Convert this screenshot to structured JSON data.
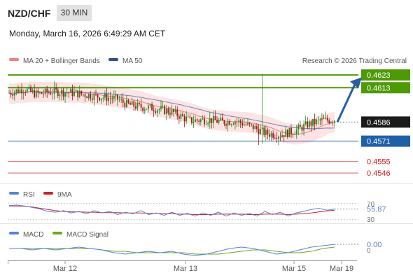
{
  "header": {
    "symbol": "NZD/CHF",
    "timeframe": "30 MIN",
    "datetime": "Monday, March 16, 2026 6:49:29 AM CET"
  },
  "legend": {
    "ma20": "MA 20 + Bollinger Bands",
    "ma50": "MA 50",
    "credit": "Research © 2026 Trading Central",
    "rsi": "RSI",
    "rsi_ma": "9MA",
    "macd": "MACD",
    "macd_signal": "MACD Signal"
  },
  "colors": {
    "up": "#1f8f1f",
    "down": "#a01818",
    "resistance": "#4e9a06",
    "support": "#1f5fa8",
    "target": "#cc2222",
    "ma20": "#f08080",
    "ma50": "#4a6ea8",
    "band": "#fde0e0",
    "arrow": "#2b5ca8",
    "rsi": "#5b7fd6",
    "rsi_ma": "#cc2222",
    "macd": "#5b7fd6",
    "macd_signal": "#6aa820"
  },
  "chart_data": [
    {
      "type": "candlestick",
      "x_ticks": [
        "Mar 12",
        "Mar 13",
        "Mar 15",
        "Mar 19"
      ],
      "ylim": [
        0.454,
        0.4628
      ],
      "last_price": "0.4586",
      "levels": [
        {
          "value": 0.4623,
          "label": "0.4623",
          "kind": "resistance"
        },
        {
          "value": 0.4613,
          "label": "0.4613",
          "kind": "resistance"
        },
        {
          "value": 0.4571,
          "label": "0.4571",
          "kind": "support"
        },
        {
          "value": 0.4555,
          "label": "0.4555",
          "kind": "target"
        },
        {
          "value": 0.4546,
          "label": "0.4546",
          "kind": "target"
        }
      ],
      "forecast": {
        "from": 0.4586,
        "to": 0.4619
      },
      "path": [
        [
          0,
          0.4609
        ],
        [
          8,
          0.4612
        ],
        [
          15,
          0.4608
        ],
        [
          25,
          0.461
        ],
        [
          35,
          0.4609
        ],
        [
          45,
          0.4607
        ],
        [
          55,
          0.4605
        ],
        [
          60,
          0.4604
        ],
        [
          65,
          0.46
        ],
        [
          72,
          0.4598
        ],
        [
          80,
          0.4597
        ],
        [
          90,
          0.4594
        ],
        [
          100,
          0.4587
        ],
        [
          110,
          0.4588
        ],
        [
          118,
          0.4586
        ],
        [
          125,
          0.4587
        ],
        [
          135,
          0.4582
        ],
        [
          142,
          0.4577
        ],
        [
          150,
          0.4576
        ],
        [
          158,
          0.4579
        ],
        [
          165,
          0.4584
        ],
        [
          172,
          0.4587
        ],
        [
          180,
          0.4588
        ]
      ]
    },
    {
      "type": "line",
      "name": "RSI",
      "levels": [
        70,
        30
      ],
      "level_labels": [
        "70",
        "30"
      ],
      "ylim": [
        25,
        75
      ],
      "last_label": "55.87",
      "rsi": [
        65,
        66,
        64,
        60,
        56,
        50,
        48,
        52,
        46,
        50,
        44,
        52,
        46,
        50,
        42,
        48,
        44,
        52,
        42,
        46,
        40,
        48,
        40,
        45,
        38,
        46,
        40,
        48,
        38,
        46,
        40,
        45,
        38,
        50,
        42,
        48,
        38,
        46,
        50,
        55,
        58,
        53,
        56
      ],
      "ma9": [
        64,
        64,
        63,
        61,
        58,
        55,
        52,
        50,
        49,
        49,
        48,
        48,
        47,
        47,
        47,
        46,
        46,
        46,
        45,
        45,
        44,
        44,
        43,
        43,
        42,
        42,
        42,
        43,
        43,
        43,
        43,
        42,
        42,
        43,
        43,
        43,
        42,
        43,
        44,
        46,
        49,
        51,
        53
      ]
    },
    {
      "type": "line",
      "name": "MACD",
      "last_label": "0.00",
      "zero_label": "0",
      "ylim": [
        -0.0006,
        0.0006
      ],
      "macd": [
        0.0001,
        0.0001,
        0.0,
        0.0001,
        0.0,
        0.0001,
        0.0002,
        0.0001,
        0.0,
        -0.0002,
        -0.0003,
        -0.0002,
        -0.0001,
        -0.0002,
        -0.0001,
        -0.0003,
        -0.0004,
        -0.0003,
        -0.0001,
        0.0001,
        0.0002,
        0.0001,
        -0.0001,
        -0.0003,
        -0.0002,
        0.0,
        0.0002,
        0.0003,
        0.0004
      ],
      "signal": [
        0.0001,
        0.0001,
        0.0001,
        0.0001,
        0.0001,
        0.0001,
        0.0001,
        0.0001,
        0.0,
        -0.0001,
        -0.0001,
        -0.0002,
        -0.0002,
        -0.0002,
        -0.0002,
        -0.0002,
        -0.0003,
        -0.0003,
        -0.0003,
        -0.0002,
        -0.0001,
        0.0,
        0.0,
        -0.0001,
        -0.0002,
        -0.0002,
        -0.0001,
        0.0001,
        0.0002
      ]
    }
  ]
}
